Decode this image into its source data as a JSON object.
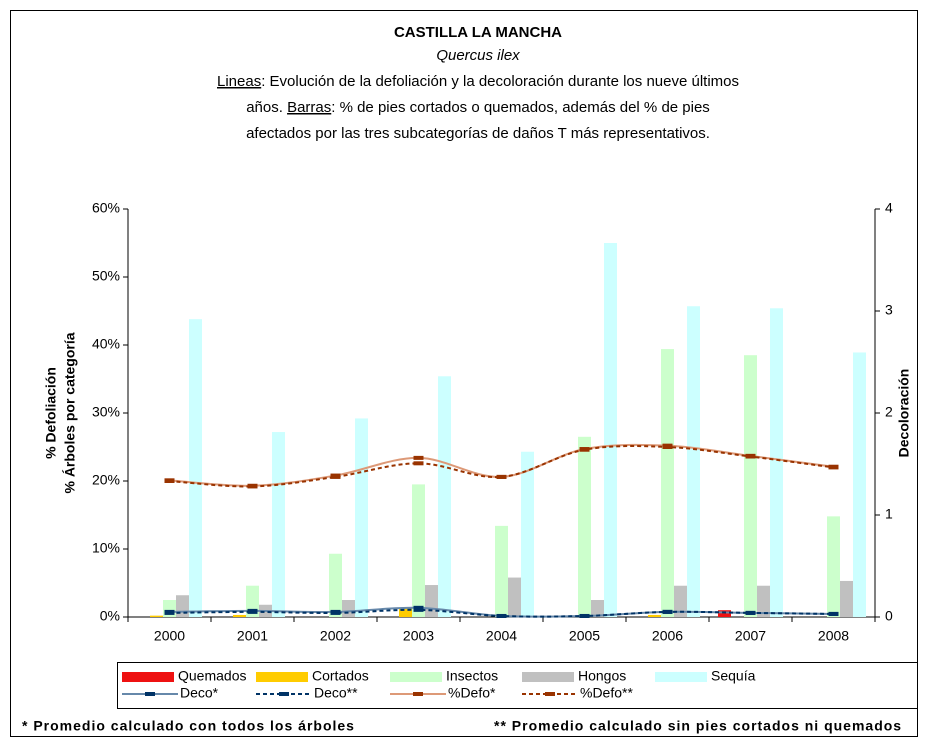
{
  "chart_data": {
    "type": "bar",
    "title": "CASTILLA LA MANCHA",
    "species": "Quercus ilex",
    "subtitle": [
      [
        "Lineas",
        ": Evolución de la defoliación y la decoloración durante los nueve últimos"
      ],
      [
        "años. ",
        "Barras",
        ": % de pies cortados o quemados, además del % de pies"
      ],
      [
        "afectados por las tres subcategorías de daños T más representativos."
      ]
    ],
    "ylabel": [
      "% Defoliación",
      "% Árboles por categoría"
    ],
    "y2label": "Decoloración",
    "categories": [
      "2000",
      "2001",
      "2002",
      "2003",
      "2004",
      "2005",
      "2006",
      "2007",
      "2008"
    ],
    "ylim": [
      0,
      60
    ],
    "yticks": [
      {
        "value": 0,
        "label": "0%"
      },
      {
        "value": 10,
        "label": "10%"
      },
      {
        "value": 20,
        "label": "20%"
      },
      {
        "value": 30,
        "label": "30%"
      },
      {
        "value": 40,
        "label": "40%"
      },
      {
        "value": 50,
        "label": "50%"
      },
      {
        "value": 60,
        "label": "60%"
      }
    ],
    "y2lim": [
      0,
      4
    ],
    "y2ticks": [
      0,
      1,
      2,
      3,
      4
    ],
    "series": [
      {
        "name": "Quemados",
        "type": "bar",
        "color": "#ee1111",
        "values": [
          0,
          0,
          0,
          0,
          0,
          0,
          0,
          1.0,
          0
        ]
      },
      {
        "name": "Cortados",
        "type": "bar",
        "color": "#ffcc00",
        "values": [
          0.2,
          0.3,
          0,
          1.3,
          0,
          0,
          0.3,
          0,
          0
        ]
      },
      {
        "name": "Insectos",
        "type": "bar",
        "color": "#ccffcc",
        "values": [
          2.5,
          4.6,
          9.3,
          19.5,
          13.4,
          26.5,
          39.4,
          38.5,
          14.8
        ]
      },
      {
        "name": "Hongos",
        "type": "bar",
        "color": "#c0c0c0",
        "values": [
          3.2,
          1.8,
          2.5,
          4.7,
          5.8,
          2.5,
          4.6,
          4.6,
          5.3
        ]
      },
      {
        "name": "Sequía",
        "type": "bar",
        "color": "#ccffff",
        "values": [
          43.8,
          27.2,
          29.2,
          35.4,
          24.3,
          55.0,
          45.7,
          45.4,
          38.9
        ]
      },
      {
        "name": "Deco*",
        "type": "line",
        "axis": "y2",
        "color": "#6688aa",
        "marker_color": "#003366",
        "dash": false,
        "values": [
          0.05,
          0.06,
          0.05,
          0.09,
          0.01,
          0.01,
          0.05,
          0.04,
          0.03
        ]
      },
      {
        "name": "Deco**",
        "type": "line",
        "axis": "y2",
        "color": "#003366",
        "marker_color": "#003366",
        "dash": true,
        "values": [
          0.04,
          0.05,
          0.04,
          0.07,
          0.01,
          0.01,
          0.05,
          0.04,
          0.03
        ]
      },
      {
        "name": "%Defo*",
        "type": "line",
        "color": "#dd9977",
        "marker_color": "#993300",
        "dash": false,
        "values": [
          20.1,
          19.3,
          20.8,
          23.4,
          20.6,
          24.7,
          25.2,
          23.7,
          22.1
        ]
      },
      {
        "name": "%Defo**",
        "type": "line",
        "color": "#993300",
        "marker_color": "#993300",
        "dash": true,
        "values": [
          20.0,
          19.2,
          20.6,
          22.6,
          20.6,
          24.6,
          25.0,
          23.6,
          22.0
        ]
      }
    ],
    "notes": [
      "* Promedio calculado con todos los árboles",
      "** Promedio calculado sin pies cortados ni quemados"
    ]
  }
}
